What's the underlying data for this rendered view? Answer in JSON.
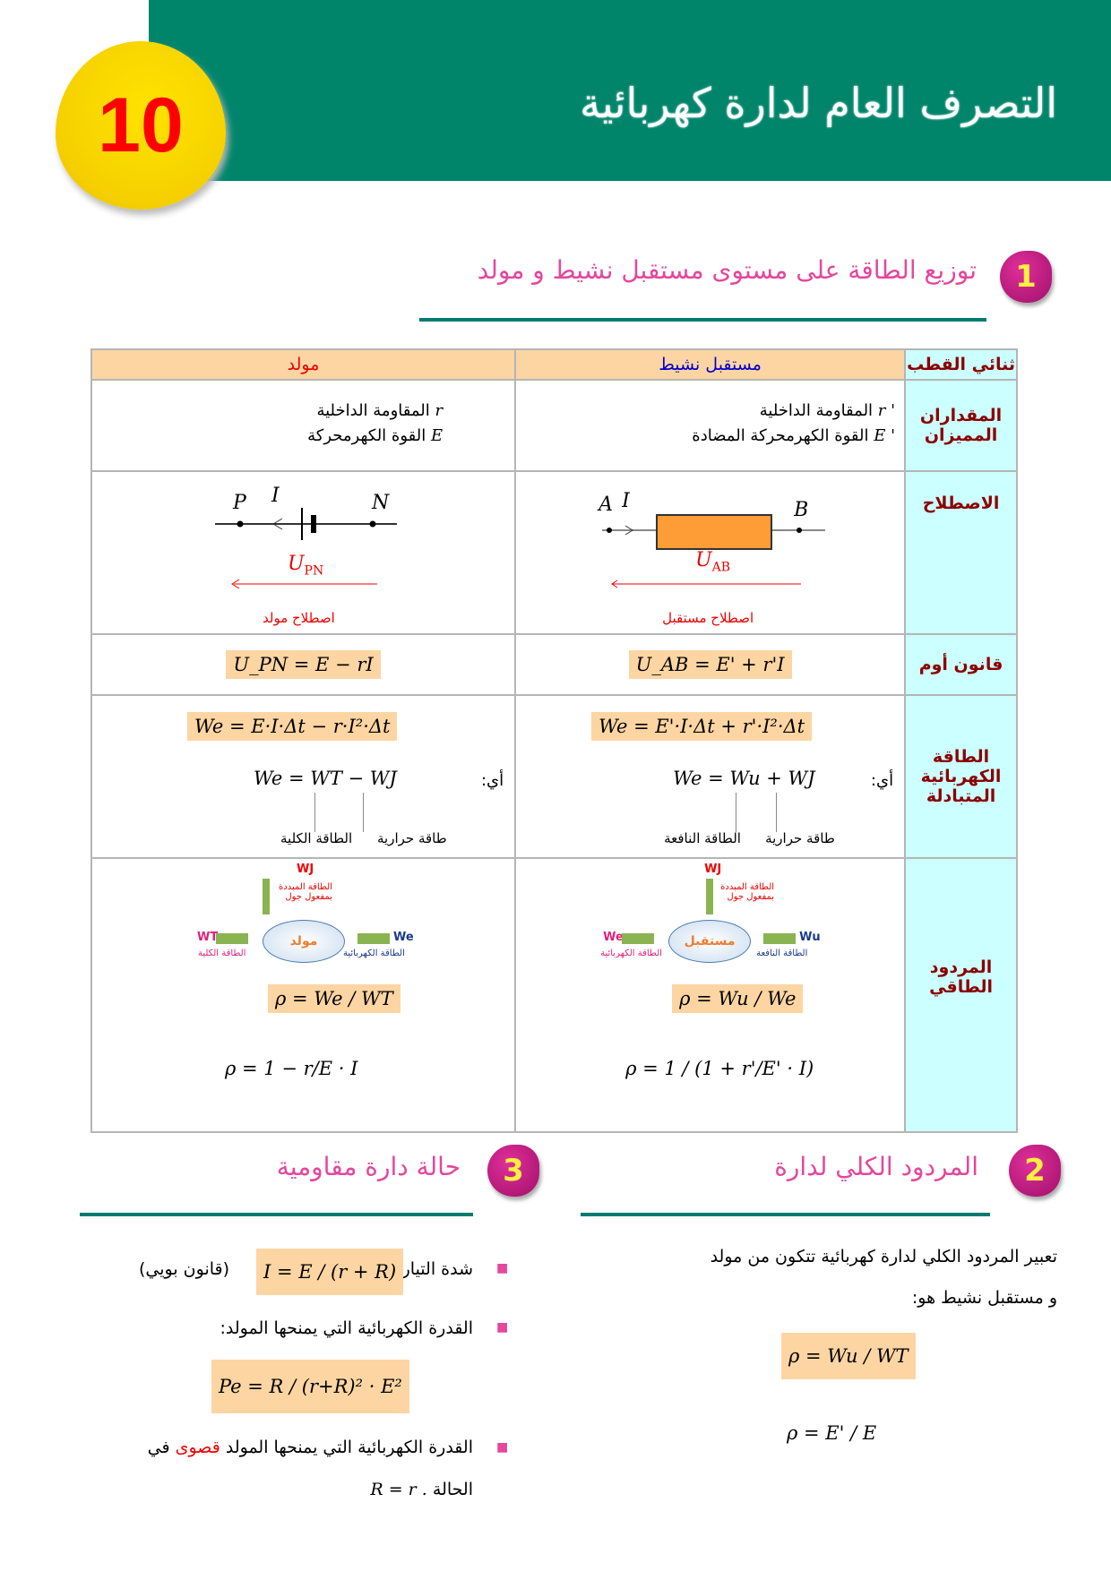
{
  "header": {
    "title": "التصرف العام لدارة كهربائية",
    "chapter": "10"
  },
  "section1": {
    "num": "1",
    "title": "توزيع الطاقة على مستوى مستقبل نشيط و مولد"
  },
  "table": {
    "headers": {
      "dipole": "ثنائي القطب",
      "receiver": "مستقبل نشيط",
      "generator": "مولد"
    },
    "colors": {
      "receiver_header": "#0000cc",
      "generator_header": "#e00000",
      "label_bg": "#ccffff",
      "formula_bg": "#fdd5a3"
    },
    "rows": {
      "quantities": {
        "label": "المقداران المميزان",
        "receiver": [
          "r '",
          "المقاومة الداخلية",
          "E '",
          "القوة الكهرمحركة المضادة"
        ],
        "generator": [
          "r",
          "المقاومة الداخلية",
          "E",
          "القوة الكهرمحركة"
        ]
      },
      "convention": {
        "label": "الاصطلاح",
        "receiver": {
          "A": "A",
          "I": "I",
          "B": "B",
          "U": "U",
          "Usub": "AB",
          "caption": "اصطلاح مستقبل"
        },
        "generator": {
          "P": "P",
          "I": "I",
          "N": "N",
          "U": "U",
          "Usub": "PN",
          "caption": "اصطلاح مولد"
        }
      },
      "ohm": {
        "label": "قانون أوم",
        "receiver": "U_AB = E' + r'I",
        "generator": "U_PN = E − rI"
      },
      "energy": {
        "label": "الطاقة الكهربائية المتبادلة",
        "ai": "أي:",
        "receiver": {
          "main": "We = E'·I·Δt + r'·I²·Δt",
          "sum": "We = Wu + WJ",
          "u_label": "الطاقة النافعة",
          "j_label": "طاقة حرارية"
        },
        "generator": {
          "main": "We = E·I·Δt − r·I²·Δt",
          "sum": "We = WT − WJ",
          "t_label": "الطاقة الكلية",
          "j_label": "طاقة حرارية"
        }
      },
      "efficiency": {
        "label": "المردود الطاقي",
        "receiver": {
          "center": "مستقبل",
          "in": "We",
          "in_label": "الطاقة الكهربائية",
          "out": "Wu",
          "out_label": "الطاقة النافعة",
          "up": "WJ",
          "up_label": "الطاقة المبددة بمفعول جول",
          "f1": "ρ = Wu / We",
          "f2": "ρ = 1 / (1 + r'/E' · I)"
        },
        "generator": {
          "center": "مولد",
          "in": "WT",
          "in_label": "الطاقة الكلية",
          "out": "We",
          "out_label": "الطاقة الكهربائية",
          "up": "WJ",
          "up_label": "الطاقة المبددة بمفعول جول",
          "f1": "ρ = We / WT",
          "f2": "ρ = 1 − r/E · I"
        }
      }
    }
  },
  "section2": {
    "num": "2",
    "title": "المردود الكلي لدارة",
    "text1": "تعبير المردود الكلي لدارة كهربائية تتكون من مولد",
    "text2": "و مستقبل نشيط هو:",
    "f1": "ρ = Wu / WT",
    "f2": "ρ = E' / E"
  },
  "section3": {
    "num": "3",
    "title": "حالة دارة مقاومية",
    "item1": "شدة التيار:",
    "item1_note": "(قانون بويي)",
    "f1": "I = E / (r + R)",
    "item2": "القدرة الكهربائية التي يمنحها المولد:",
    "f2": "Pe = R / (r+R)² · E²",
    "item3a": "القدرة الكهربائية التي يمنحها المولد",
    "item3_red": "قصوى",
    "item3b": "في",
    "item3c": "الحالة",
    "item3_cond": "R = r ."
  }
}
